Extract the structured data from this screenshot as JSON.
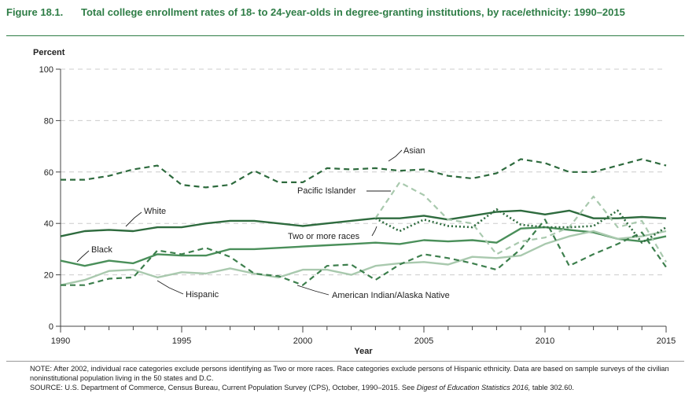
{
  "figure": {
    "number": "Figure 18.1.",
    "title": "Total college enrollment rates of 18- to 24-year-olds in degree-granting institutions, by race/ethnicity: 1990–2015"
  },
  "notes": {
    "note": "NOTE: After 2002, individual race categories exclude persons identifying as Two or more races. Race categories exclude persons of Hispanic ethnicity. Data are based on sample surveys of the civilian noninstitutional population living in the 50 states and D.C.",
    "source_prefix": "SOURCE: U.S. Department of Commerce, Census Bureau, Current Population Survey (CPS), October, 1990–2015. See ",
    "source_italic": "Digest of Education Statistics 2016,",
    "source_suffix": " table 302.60."
  },
  "chart_data": {
    "type": "line",
    "ylabel": "Percent",
    "xlabel": "Year",
    "xlim": [
      1990,
      2015
    ],
    "ylim": [
      0,
      100
    ],
    "yticks": [
      0,
      20,
      40,
      60,
      80,
      100
    ],
    "xticks": [
      1990,
      1995,
      2000,
      2005,
      2010,
      2015
    ],
    "grid": true,
    "colors": {
      "dark": "#2e6b3e",
      "medium": "#4a8f5a",
      "light": "#a9c9ae",
      "axis": "#444444",
      "grid": "#cccccc"
    },
    "series": [
      {
        "name": "White",
        "style": "solid-dark",
        "x": [
          1990,
          1991,
          1992,
          1993,
          1994,
          1995,
          1996,
          1997,
          1998,
          1999,
          2000,
          2001,
          2002,
          2003,
          2004,
          2005,
          2006,
          2007,
          2008,
          2009,
          2010,
          2011,
          2012,
          2013,
          2014,
          2015
        ],
        "values": [
          35,
          37,
          37.5,
          37,
          38.5,
          38.5,
          40,
          41,
          41,
          40,
          39,
          40,
          41,
          42,
          42,
          43,
          41.5,
          43,
          44.5,
          45,
          43.5,
          45,
          42,
          42,
          42.5,
          42
        ]
      },
      {
        "name": "Black",
        "style": "solid-medium",
        "x": [
          1990,
          1991,
          1992,
          1993,
          1994,
          1995,
          1996,
          1997,
          1998,
          1999,
          2000,
          2001,
          2002,
          2003,
          2004,
          2005,
          2006,
          2007,
          2008,
          2009,
          2010,
          2011,
          2012,
          2013,
          2014,
          2015
        ],
        "values": [
          25.5,
          23.5,
          25.5,
          24.5,
          28,
          27.5,
          27.5,
          30,
          30,
          30.5,
          31,
          31.5,
          32,
          32.5,
          32,
          33.5,
          33,
          33.5,
          32.5,
          38,
          38.5,
          37.5,
          36.5,
          34,
          33,
          35
        ]
      },
      {
        "name": "Hispanic",
        "style": "solid-light",
        "x": [
          1990,
          1991,
          1992,
          1993,
          1994,
          1995,
          1996,
          1997,
          1998,
          1999,
          2000,
          2001,
          2002,
          2003,
          2004,
          2005,
          2006,
          2007,
          2008,
          2009,
          2010,
          2011,
          2012,
          2013,
          2014,
          2015
        ],
        "values": [
          16,
          18,
          21.5,
          22,
          19,
          21,
          20.5,
          22.5,
          20.5,
          19,
          22,
          22,
          20,
          23.5,
          24.5,
          25,
          24,
          27,
          26.5,
          27.5,
          32,
          35,
          37,
          34,
          35,
          37
        ]
      },
      {
        "name": "Asian",
        "style": "dashed-dark",
        "x": [
          1990,
          1991,
          1992,
          1993,
          1994,
          1995,
          1996,
          1997,
          1998,
          1999,
          2000,
          2001,
          2002,
          2003,
          2004,
          2005,
          2006,
          2007,
          2008,
          2009,
          2010,
          2011,
          2012,
          2013,
          2014,
          2015
        ],
        "values": [
          57,
          57,
          58.5,
          61,
          62.5,
          55,
          54,
          55,
          60.5,
          56,
          56,
          61.5,
          61,
          61.5,
          60.5,
          61,
          58.5,
          57.5,
          59.5,
          65,
          63.5,
          60,
          60,
          62.5,
          65,
          62.5
        ]
      },
      {
        "name": "American Indian/Alaska Native",
        "style": "dashed-medium",
        "x": [
          1990,
          1991,
          1992,
          1993,
          1994,
          1995,
          1996,
          1997,
          1998,
          1999,
          2000,
          2001,
          2002,
          2003,
          2004,
          2005,
          2006,
          2007,
          2008,
          2009,
          2010,
          2011,
          2012,
          2013,
          2014,
          2015
        ],
        "values": [
          16,
          16,
          18.5,
          19,
          29.5,
          28,
          30.5,
          27,
          20.5,
          19.5,
          16,
          23.5,
          24,
          18,
          24,
          28,
          26.5,
          24.5,
          22,
          30,
          41.5,
          23.5,
          28,
          32,
          36.5,
          23
        ]
      },
      {
        "name": "Pacific Islander",
        "style": "dashed-light",
        "x": [
          2003,
          2004,
          2005,
          2006,
          2007,
          2008,
          2009,
          2010,
          2011,
          2012,
          2013,
          2014,
          2015
        ],
        "values": [
          42,
          56,
          51,
          41.5,
          40,
          28,
          33,
          34.5,
          38.5,
          50.5,
          38.5,
          41,
          25
        ]
      },
      {
        "name": "Two or more races",
        "style": "dotted-dark",
        "x": [
          2003,
          2004,
          2005,
          2006,
          2007,
          2008,
          2009,
          2010,
          2011,
          2012,
          2013,
          2014,
          2015
        ],
        "values": [
          42,
          37,
          41.5,
          39,
          38.5,
          45.5,
          39.5,
          38.5,
          38.5,
          39,
          45,
          32.5,
          38.5
        ]
      }
    ]
  }
}
